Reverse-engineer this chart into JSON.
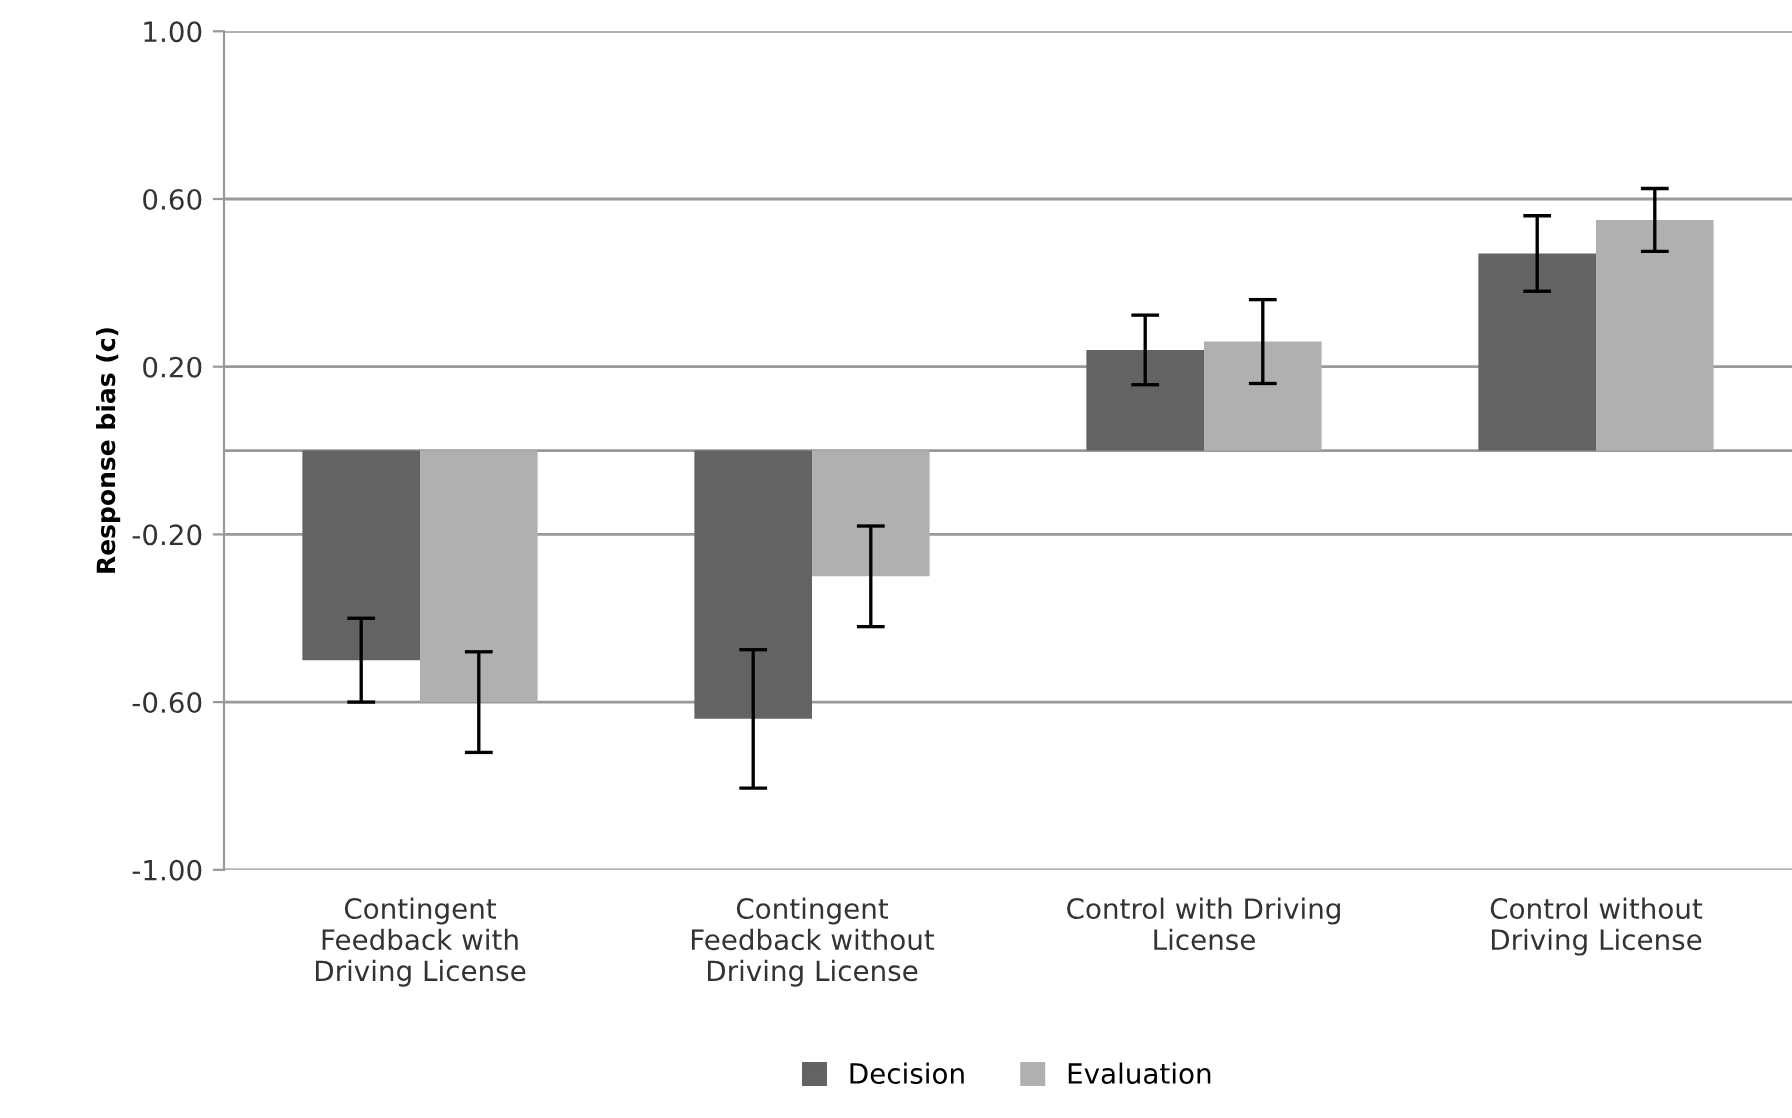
{
  "chart_data": {
    "type": "bar",
    "ylabel": "Response bias (c)",
    "categories": [
      "Contingent\nFeedback with\nDriving License",
      "Contingent\nFeedback without\nDriving License",
      "Control with Driving\nLicense",
      "Control without\nDriving License"
    ],
    "series": [
      {
        "name": "Decision",
        "color": "#636363",
        "values": [
          -0.5,
          -0.64,
          0.24,
          0.47
        ],
        "errors": [
          0.1,
          0.165,
          0.083,
          0.09
        ]
      },
      {
        "name": "Evaluation",
        "color": "#b0b0b0",
        "values": [
          -0.6,
          -0.3,
          0.26,
          0.55
        ],
        "errors": [
          0.12,
          0.12,
          0.1,
          0.075
        ]
      }
    ],
    "ylim": [
      -1,
      1
    ],
    "yticks": [
      {
        "value": -1,
        "label": "-1.00"
      },
      {
        "value": -0.6,
        "label": "-0.60"
      },
      {
        "value": -0.2,
        "label": "-0.20"
      },
      {
        "value": 0.2,
        "label": "0.20"
      },
      {
        "value": 0.6,
        "label": "0.60"
      },
      {
        "value": 1,
        "label": "1.00"
      }
    ],
    "grid": "y",
    "legend": "bottom"
  }
}
